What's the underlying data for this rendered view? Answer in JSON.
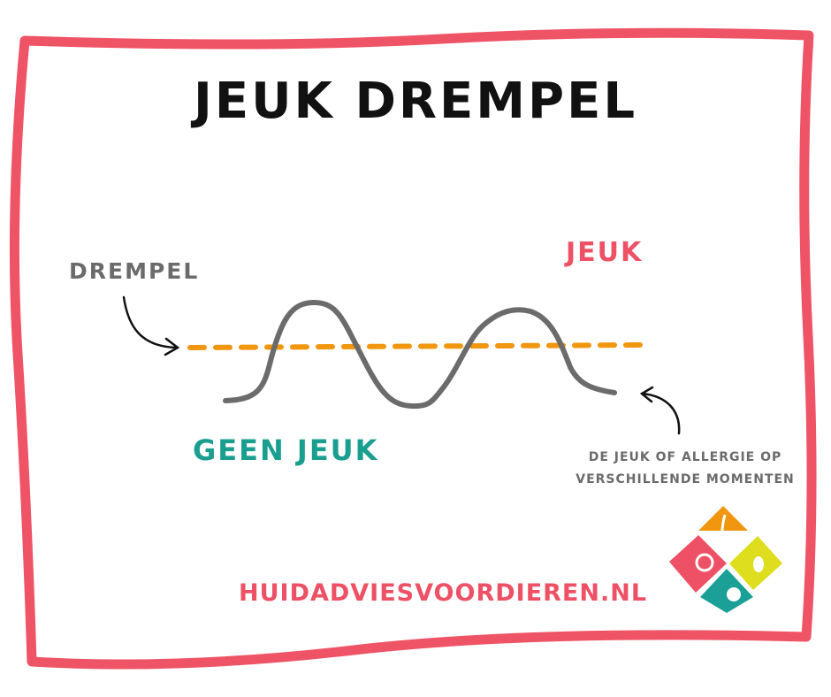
{
  "title": "Jeuk drempel",
  "labels": {
    "threshold": "Drempel",
    "itch": "Jeuk",
    "no_itch": "Geen jeuk",
    "note_line1": "De jeuk of allergie op",
    "note_line2": "verschillende momenten"
  },
  "website": "huidadviesvoordieren.nl",
  "colors": {
    "border": "#ef5366",
    "threshold_line": "#f0960f",
    "curve": "#6b6b6b",
    "itch": "#ee5065",
    "no_itch": "#1a9e8f",
    "logo_orange": "#f0960f",
    "logo_pink": "#ee5065",
    "logo_yellow": "#dede1e",
    "logo_teal": "#1aa096"
  },
  "logo": {
    "icons": [
      "hair-icon",
      "dog-icon",
      "rabbit-icon",
      "cat-icon"
    ]
  }
}
